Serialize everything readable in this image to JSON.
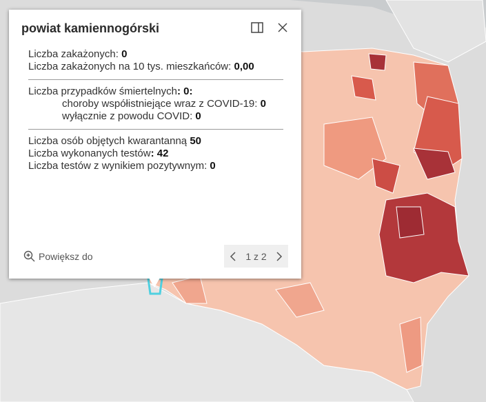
{
  "popup": {
    "title": "powiat kamiennogórski",
    "sections": [
      {
        "rows": [
          {
            "label": "Liczba zakażonych: ",
            "value": "0"
          },
          {
            "label": "Liczba zakażonych na 10 tys. mieszkańców: ",
            "value": "0,00"
          }
        ]
      },
      {
        "rows": [
          {
            "label": "Liczba przypadków śmiertelnych",
            "value": ": 0:"
          },
          {
            "label": "choroby współistniejące wraz z COVID-19: ",
            "value": "0"
          },
          {
            "label": "wyłącznie z powodu COVID: ",
            "value": "0"
          }
        ]
      },
      {
        "rows": [
          {
            "label": "Liczba osób objętych kwarantanną ",
            "value": "50"
          },
          {
            "label": "Liczba wykonanych testów",
            "value": ": 42"
          },
          {
            "label": "Liczba testów z wynikiem pozytywnym: ",
            "value": "0"
          }
        ]
      }
    ],
    "zoom_action": "Powiększ do",
    "pager": "1 z 2"
  }
}
